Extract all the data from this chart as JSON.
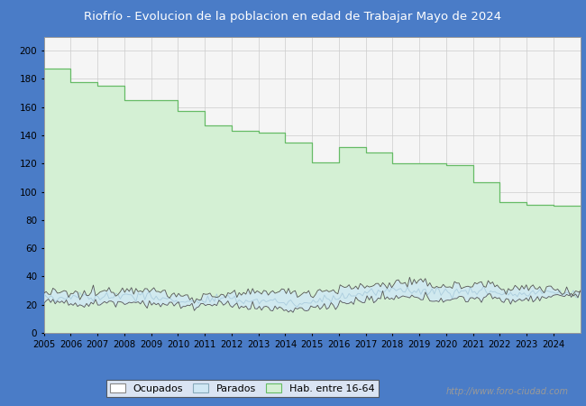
{
  "title": "Riofrío - Evolucion de la poblacion en edad de Trabajar Mayo de 2024",
  "title_bg": "#4a7cc7",
  "title_color": "white",
  "ylim": [
    0,
    210
  ],
  "yticks": [
    0,
    20,
    40,
    60,
    80,
    100,
    120,
    140,
    160,
    180,
    200
  ],
  "years": [
    2005,
    2006,
    2007,
    2008,
    2009,
    2010,
    2011,
    2012,
    2013,
    2014,
    2015,
    2016,
    2017,
    2018,
    2019,
    2020,
    2021,
    2022,
    2023,
    2024
  ],
  "hab_16_64": [
    187,
    178,
    175,
    165,
    165,
    157,
    147,
    143,
    142,
    135,
    121,
    132,
    128,
    120,
    120,
    119,
    107,
    93,
    91,
    90
  ],
  "ocupados_upper": [
    28,
    27,
    30,
    32,
    28,
    25,
    27,
    27,
    30,
    28,
    30,
    32,
    34,
    36,
    34,
    33,
    35,
    31,
    32,
    30
  ],
  "ocupados_lower": [
    22,
    20,
    22,
    22,
    20,
    19,
    20,
    19,
    17,
    16,
    19,
    22,
    24,
    25,
    24,
    24,
    25,
    23,
    25,
    27
  ],
  "parados_line": [
    25,
    25,
    26,
    27,
    24,
    22,
    24,
    23,
    23,
    20,
    24,
    27,
    29,
    31,
    29,
    29,
    30,
    27,
    29,
    28
  ],
  "watermark": "http://www.foro-ciudad.com",
  "grid_color": "#cccccc",
  "plot_bg": "#e8e8e8",
  "inner_bg": "#f5f5f5",
  "hab_fill_color": "#d4f0d4",
  "hab_line_color": "#66bb66",
  "parados_fill_color": "#d0e8f5",
  "ocupados_line_color": "#555555",
  "parados_line_color": "#aaccdd"
}
